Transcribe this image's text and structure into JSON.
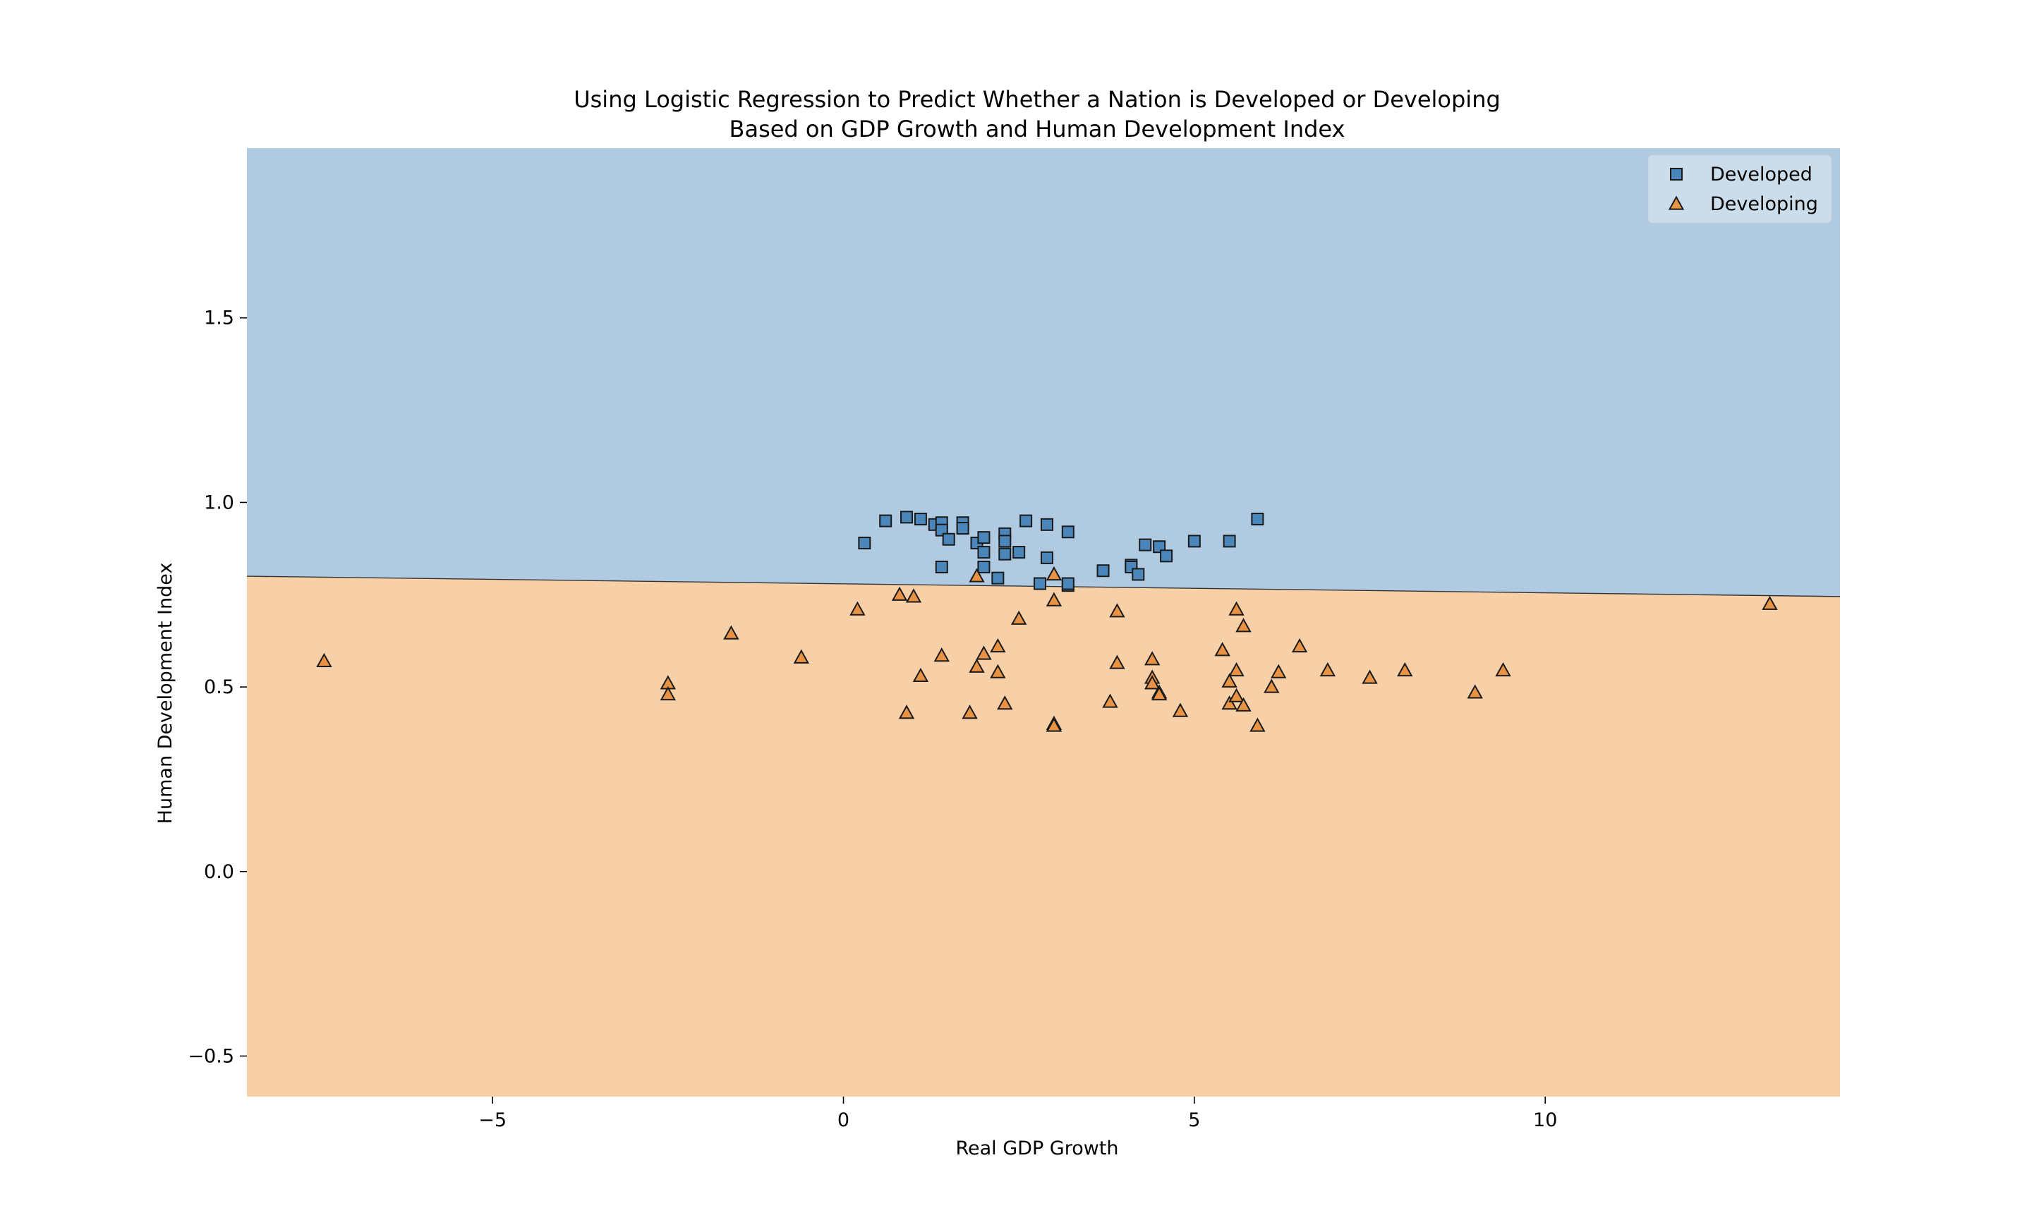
{
  "chart_data": {
    "type": "scatter",
    "title_lines": [
      "Using Logistic Regression to Predict Whether a Nation is Developed or Developing",
      "Based on GDP Growth and Human Development Index"
    ],
    "xlabel": "Real GDP Growth",
    "ylabel": "Human Development Index",
    "xlim": [
      -8.5,
      14.2
    ],
    "ylim": [
      -0.61,
      1.96
    ],
    "xticks": [
      {
        "value": -5,
        "label": "−5"
      },
      {
        "value": 0,
        "label": "0"
      },
      {
        "value": 5,
        "label": "5"
      },
      {
        "value": 10,
        "label": "10"
      }
    ],
    "yticks": [
      {
        "value": -0.5,
        "label": "−0.5"
      },
      {
        "value": 0.0,
        "label": "0.0"
      },
      {
        "value": 0.5,
        "label": "0.5"
      },
      {
        "value": 1.0,
        "label": "1.0"
      },
      {
        "value": 1.5,
        "label": "1.5"
      }
    ],
    "grid": false,
    "legend_position": "top-right",
    "decision_regions": {
      "upper_class": "Developed",
      "upper_color": "#b0cbe1",
      "lower_class": "Developing",
      "lower_color": "#f8d0a7",
      "boundary": [
        [
          -8.5,
          0.8
        ],
        [
          14.2,
          0.745
        ]
      ]
    },
    "series": [
      {
        "name": "Developed",
        "marker": "square",
        "color": "#4a86b9",
        "points": [
          [
            0.3,
            0.89
          ],
          [
            0.6,
            0.95
          ],
          [
            0.9,
            0.96
          ],
          [
            1.1,
            0.955
          ],
          [
            1.3,
            0.94
          ],
          [
            1.4,
            0.945
          ],
          [
            1.4,
            0.925
          ],
          [
            1.5,
            0.9
          ],
          [
            1.7,
            0.945
          ],
          [
            1.7,
            0.93
          ],
          [
            1.9,
            0.89
          ],
          [
            2.0,
            0.905
          ],
          [
            2.0,
            0.865
          ],
          [
            2.3,
            0.915
          ],
          [
            2.3,
            0.895
          ],
          [
            2.3,
            0.86
          ],
          [
            2.5,
            0.865
          ],
          [
            2.6,
            0.95
          ],
          [
            2.9,
            0.94
          ],
          [
            3.2,
            0.92
          ],
          [
            1.4,
            0.825
          ],
          [
            2.0,
            0.825
          ],
          [
            2.2,
            0.795
          ],
          [
            2.8,
            0.78
          ],
          [
            2.9,
            0.85
          ],
          [
            3.2,
            0.775
          ],
          [
            3.2,
            0.78
          ],
          [
            3.7,
            0.815
          ],
          [
            4.1,
            0.83
          ],
          [
            4.1,
            0.825
          ],
          [
            4.2,
            0.805
          ],
          [
            4.3,
            0.885
          ],
          [
            4.5,
            0.88
          ],
          [
            4.6,
            0.855
          ],
          [
            5.0,
            0.895
          ],
          [
            5.5,
            0.895
          ],
          [
            5.9,
            0.955
          ]
        ]
      },
      {
        "name": "Developing",
        "marker": "triangle",
        "color": "#e89243",
        "points": [
          [
            -7.4,
            0.57
          ],
          [
            -2.5,
            0.51
          ],
          [
            -2.5,
            0.48
          ],
          [
            -1.6,
            0.645
          ],
          [
            -0.6,
            0.58
          ],
          [
            0.2,
            0.71
          ],
          [
            0.8,
            0.75
          ],
          [
            0.9,
            0.43
          ],
          [
            1.0,
            0.745
          ],
          [
            1.1,
            0.53
          ],
          [
            1.4,
            0.585
          ],
          [
            1.8,
            0.43
          ],
          [
            1.9,
            0.8
          ],
          [
            1.9,
            0.555
          ],
          [
            2.0,
            0.59
          ],
          [
            2.2,
            0.61
          ],
          [
            2.2,
            0.54
          ],
          [
            2.3,
            0.455
          ],
          [
            2.5,
            0.685
          ],
          [
            3.0,
            0.805
          ],
          [
            3.0,
            0.735
          ],
          [
            3.0,
            0.4
          ],
          [
            3.0,
            0.395
          ],
          [
            3.8,
            0.46
          ],
          [
            3.9,
            0.705
          ],
          [
            3.9,
            0.565
          ],
          [
            4.4,
            0.575
          ],
          [
            4.4,
            0.525
          ],
          [
            4.4,
            0.51
          ],
          [
            4.5,
            0.485
          ],
          [
            4.5,
            0.48
          ],
          [
            4.8,
            0.435
          ],
          [
            5.4,
            0.6
          ],
          [
            5.5,
            0.515
          ],
          [
            5.5,
            0.455
          ],
          [
            5.6,
            0.71
          ],
          [
            5.6,
            0.545
          ],
          [
            5.6,
            0.475
          ],
          [
            5.7,
            0.665
          ],
          [
            5.7,
            0.45
          ],
          [
            5.9,
            0.395
          ],
          [
            6.1,
            0.5
          ],
          [
            6.2,
            0.54
          ],
          [
            6.5,
            0.61
          ],
          [
            6.9,
            0.545
          ],
          [
            7.5,
            0.525
          ],
          [
            8.0,
            0.545
          ],
          [
            9.0,
            0.485
          ],
          [
            9.4,
            0.545
          ],
          [
            13.2,
            0.725
          ]
        ]
      }
    ]
  }
}
